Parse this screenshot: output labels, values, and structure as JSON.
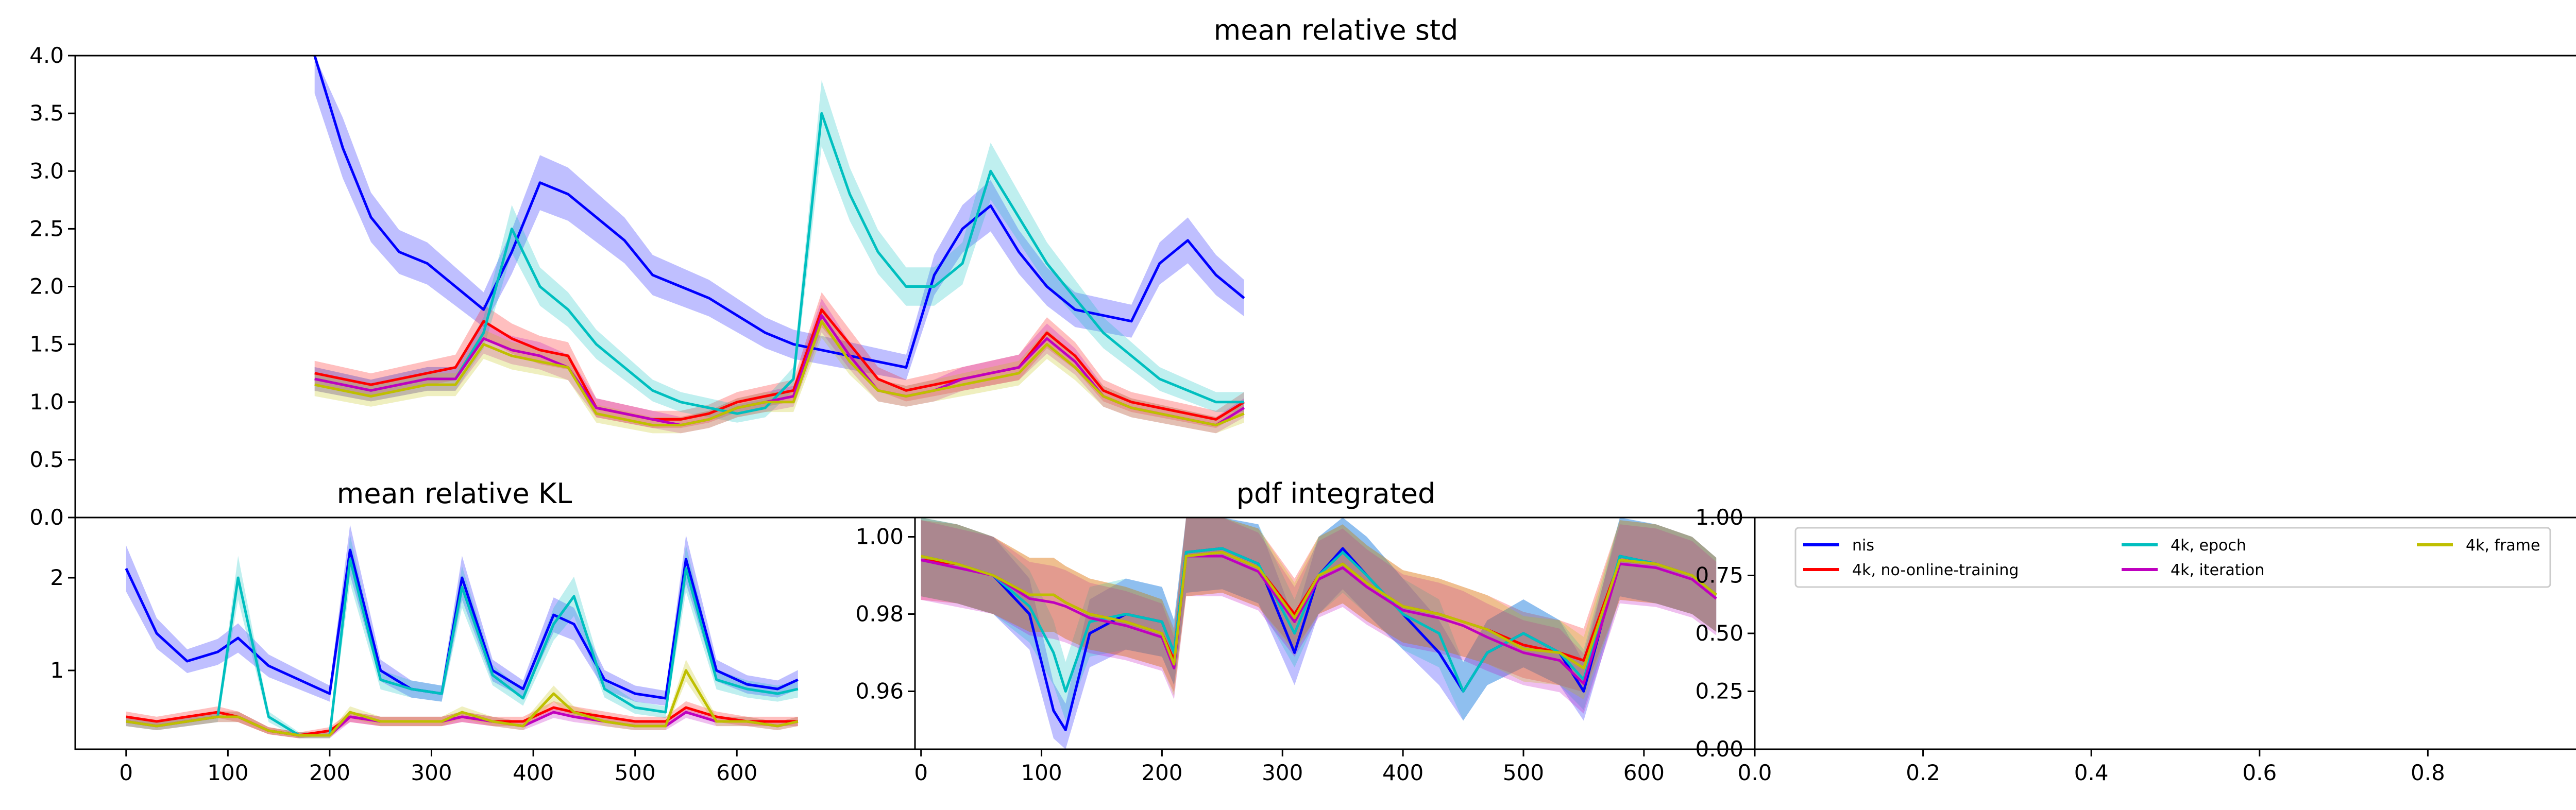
{
  "chart_data": [
    {
      "id": "std",
      "type": "line",
      "title": "mean relative std",
      "xlim": [
        0,
        660
      ],
      "ylim": [
        0,
        4
      ],
      "yticks": [
        "0.0",
        "0.5",
        "1.0",
        "1.5",
        "2.0",
        "2.5",
        "3.0",
        "3.5",
        "4.0"
      ],
      "x": [
        0,
        20,
        40,
        60,
        80,
        100,
        120,
        140,
        160,
        180,
        200,
        220,
        240,
        260,
        280,
        300,
        320,
        340,
        360,
        380,
        400,
        420,
        440,
        460,
        480,
        500,
        520,
        540,
        560,
        580,
        600,
        620,
        640,
        660
      ],
      "series": [
        {
          "name": "nis",
          "color": "#0000ff",
          "values": [
            4.0,
            3.2,
            2.6,
            2.3,
            2.2,
            2.0,
            1.8,
            2.3,
            2.9,
            2.8,
            2.6,
            2.4,
            2.1,
            2.0,
            1.9,
            1.75,
            1.6,
            1.5,
            1.45,
            1.4,
            1.35,
            1.3,
            2.1,
            2.5,
            2.7,
            2.3,
            2.0,
            1.8,
            1.75,
            1.7,
            2.2,
            2.4,
            2.1,
            1.9
          ]
        },
        {
          "name": "4k, no-online-training",
          "color": "#ff0000",
          "values": [
            1.25,
            1.2,
            1.15,
            1.2,
            1.25,
            1.3,
            1.7,
            1.55,
            1.45,
            1.4,
            0.95,
            0.9,
            0.85,
            0.85,
            0.9,
            1.0,
            1.05,
            1.1,
            1.8,
            1.5,
            1.2,
            1.1,
            1.15,
            1.2,
            1.25,
            1.3,
            1.6,
            1.4,
            1.1,
            1.0,
            0.95,
            0.9,
            0.85,
            1.0
          ]
        },
        {
          "name": "4k, epoch",
          "color": "#00bfbf",
          "values": [
            1.2,
            1.15,
            1.1,
            1.15,
            1.2,
            1.2,
            1.6,
            2.5,
            2.0,
            1.8,
            1.5,
            1.3,
            1.1,
            1.0,
            0.95,
            0.9,
            0.95,
            1.2,
            3.5,
            2.8,
            2.3,
            2.0,
            2.0,
            2.2,
            3.0,
            2.6,
            2.2,
            1.9,
            1.6,
            1.4,
            1.2,
            1.1,
            1.0,
            1.0
          ]
        },
        {
          "name": "4k, iteration",
          "color": "#bf00bf",
          "values": [
            1.2,
            1.15,
            1.1,
            1.15,
            1.2,
            1.2,
            1.55,
            1.45,
            1.4,
            1.3,
            0.95,
            0.9,
            0.85,
            0.8,
            0.85,
            0.95,
            1.0,
            1.05,
            1.75,
            1.4,
            1.1,
            1.05,
            1.1,
            1.2,
            1.25,
            1.3,
            1.55,
            1.35,
            1.05,
            0.95,
            0.9,
            0.85,
            0.8,
            0.95
          ]
        },
        {
          "name": "4k, frame",
          "color": "#bfbf00",
          "values": [
            1.15,
            1.1,
            1.05,
            1.1,
            1.15,
            1.15,
            1.5,
            1.4,
            1.35,
            1.3,
            0.9,
            0.85,
            0.8,
            0.8,
            0.85,
            0.95,
            1.0,
            1.0,
            1.7,
            1.35,
            1.1,
            1.05,
            1.1,
            1.15,
            1.2,
            1.25,
            1.5,
            1.3,
            1.05,
            0.95,
            0.9,
            0.85,
            0.8,
            0.9
          ]
        }
      ]
    },
    {
      "id": "kl",
      "type": "line",
      "title": "mean relative KL",
      "xlim": [
        0,
        660
      ],
      "ylim": [
        0.15,
        2.65
      ],
      "yticks": [
        "1",
        "2"
      ],
      "xticks": [
        "0",
        "100",
        "200",
        "300",
        "400",
        "500",
        "600"
      ],
      "x": [
        0,
        30,
        60,
        90,
        110,
        140,
        170,
        200,
        220,
        250,
        280,
        310,
        330,
        360,
        390,
        420,
        440,
        470,
        500,
        530,
        550,
        580,
        610,
        640,
        660
      ],
      "series": [
        {
          "name": "nis",
          "color": "#0000ff",
          "values": [
            2.1,
            1.4,
            1.1,
            1.2,
            1.35,
            1.05,
            0.9,
            0.75,
            2.3,
            1.0,
            0.8,
            0.75,
            2.0,
            1.0,
            0.8,
            1.6,
            1.5,
            0.9,
            0.75,
            0.7,
            2.2,
            1.0,
            0.85,
            0.8,
            0.9
          ]
        },
        {
          "name": "4k, no-online-training",
          "color": "#ff0000",
          "values": [
            0.5,
            0.45,
            0.5,
            0.55,
            0.5,
            0.35,
            0.3,
            0.35,
            0.5,
            0.45,
            0.45,
            0.45,
            0.5,
            0.45,
            0.45,
            0.6,
            0.55,
            0.5,
            0.45,
            0.45,
            0.6,
            0.5,
            0.45,
            0.45,
            0.45
          ]
        },
        {
          "name": "4k, epoch",
          "color": "#00bfbf",
          "values": [
            0.45,
            0.4,
            0.45,
            0.5,
            2.0,
            0.5,
            0.3,
            0.3,
            2.2,
            0.9,
            0.8,
            0.75,
            1.9,
            0.95,
            0.7,
            1.5,
            1.8,
            0.8,
            0.6,
            0.55,
            2.1,
            0.9,
            0.8,
            0.75,
            0.8
          ]
        },
        {
          "name": "4k, iteration",
          "color": "#bf00bf",
          "values": [
            0.45,
            0.4,
            0.45,
            0.5,
            0.5,
            0.35,
            0.3,
            0.3,
            0.5,
            0.45,
            0.45,
            0.45,
            0.5,
            0.45,
            0.4,
            0.55,
            0.5,
            0.45,
            0.4,
            0.4,
            0.55,
            0.45,
            0.45,
            0.4,
            0.45
          ]
        },
        {
          "name": "4k, frame",
          "color": "#bfbf00",
          "values": [
            0.45,
            0.4,
            0.45,
            0.5,
            0.5,
            0.35,
            0.3,
            0.3,
            0.55,
            0.45,
            0.45,
            0.45,
            0.55,
            0.45,
            0.4,
            0.75,
            0.55,
            0.45,
            0.4,
            0.4,
            1.0,
            0.45,
            0.45,
            0.4,
            0.45
          ]
        }
      ]
    },
    {
      "id": "pdf",
      "type": "line",
      "title": "pdf integrated",
      "xlim": [
        0,
        660
      ],
      "ylim": [
        0.945,
        1.005
      ],
      "yticks": [
        "0.96",
        "0.98",
        "1.00"
      ],
      "xticks": [
        "0",
        "100",
        "200",
        "300",
        "400",
        "500",
        "600"
      ],
      "x": [
        0,
        30,
        60,
        90,
        110,
        120,
        140,
        170,
        200,
        210,
        220,
        250,
        280,
        310,
        330,
        350,
        370,
        400,
        430,
        450,
        470,
        500,
        530,
        550,
        580,
        610,
        640,
        660
      ],
      "series": [
        {
          "name": "nis",
          "color": "#0000ff",
          "values": [
            0.995,
            0.993,
            0.99,
            0.98,
            0.955,
            0.95,
            0.975,
            0.98,
            0.978,
            0.97,
            0.996,
            0.997,
            0.993,
            0.97,
            0.99,
            0.997,
            0.99,
            0.98,
            0.97,
            0.96,
            0.97,
            0.975,
            0.97,
            0.96,
            0.995,
            0.993,
            0.99,
            0.985
          ]
        },
        {
          "name": "4k, no-online-training",
          "color": "#ff0000",
          "values": [
            0.994,
            0.993,
            0.99,
            0.985,
            0.985,
            0.983,
            0.98,
            0.978,
            0.975,
            0.968,
            0.995,
            0.996,
            0.992,
            0.98,
            0.99,
            0.993,
            0.988,
            0.982,
            0.98,
            0.978,
            0.976,
            0.972,
            0.97,
            0.968,
            0.994,
            0.993,
            0.99,
            0.985
          ]
        },
        {
          "name": "4k, epoch",
          "color": "#00bfbf",
          "values": [
            0.995,
            0.993,
            0.99,
            0.982,
            0.97,
            0.96,
            0.978,
            0.98,
            0.978,
            0.97,
            0.996,
            0.997,
            0.993,
            0.975,
            0.99,
            0.996,
            0.99,
            0.98,
            0.975,
            0.96,
            0.97,
            0.975,
            0.97,
            0.963,
            0.995,
            0.993,
            0.99,
            0.985
          ]
        },
        {
          "name": "4k, iteration",
          "color": "#bf00bf",
          "values": [
            0.994,
            0.992,
            0.99,
            0.984,
            0.983,
            0.982,
            0.979,
            0.977,
            0.974,
            0.966,
            0.995,
            0.995,
            0.991,
            0.978,
            0.989,
            0.992,
            0.987,
            0.981,
            0.979,
            0.977,
            0.974,
            0.97,
            0.968,
            0.962,
            0.993,
            0.992,
            0.989,
            0.984
          ]
        },
        {
          "name": "4k, frame",
          "color": "#bfbf00",
          "values": [
            0.995,
            0.993,
            0.99,
            0.985,
            0.985,
            0.983,
            0.98,
            0.978,
            0.975,
            0.967,
            0.995,
            0.996,
            0.992,
            0.979,
            0.99,
            0.993,
            0.988,
            0.982,
            0.98,
            0.978,
            0.976,
            0.971,
            0.97,
            0.966,
            0.994,
            0.993,
            0.99,
            0.985
          ]
        }
      ]
    },
    {
      "id": "legend_panel",
      "type": "line",
      "xlim": [
        0,
        1
      ],
      "ylim": [
        0,
        1
      ],
      "xticks": [
        "0.0",
        "0.2",
        "0.4",
        "0.6",
        "0.8",
        "1.0"
      ],
      "yticks": [
        "0.00",
        "0.25",
        "0.50",
        "0.75",
        "1.00"
      ],
      "legend_position": "top",
      "legend": [
        {
          "name": "nis",
          "color": "#0000ff"
        },
        {
          "name": "4k, no-online-training",
          "color": "#ff0000"
        },
        {
          "name": "4k, epoch",
          "color": "#00bfbf"
        },
        {
          "name": "4k, iteration",
          "color": "#bf00bf"
        },
        {
          "name": "4k, frame",
          "color": "#bfbf00"
        }
      ]
    }
  ]
}
